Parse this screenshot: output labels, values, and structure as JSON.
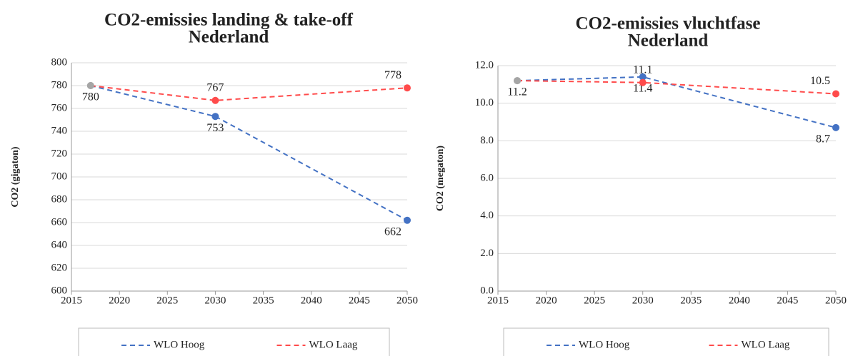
{
  "chart_data": [
    {
      "type": "line",
      "title": [
        "CO2-emissies landing & take-off",
        "Nederland"
      ],
      "y_label": "CO2 (gigaton)",
      "x": [
        2017,
        2030,
        2050
      ],
      "xlim": [
        2015,
        2050
      ],
      "xticks": [
        2015,
        2020,
        2025,
        2030,
        2035,
        2040,
        2045,
        2050
      ],
      "ylim": [
        600,
        800
      ],
      "yticks": [
        600,
        620,
        640,
        660,
        680,
        700,
        720,
        740,
        760,
        780,
        800
      ],
      "grid": true,
      "shared_point_color": "#a5a5a5",
      "series": [
        {
          "name": "WLO Hoog",
          "color": "#4472c4",
          "values": [
            780,
            753,
            662
          ]
        },
        {
          "name": "WLO Laag",
          "color": "#ff4b4b",
          "values": [
            780,
            767,
            778
          ]
        }
      ]
    },
    {
      "type": "line",
      "title": [
        "CO2-emissies vluchtfase",
        "Nederland"
      ],
      "y_label": "CO2 (megaton)",
      "x": [
        2017,
        2030,
        2050
      ],
      "xlim": [
        2015,
        2050
      ],
      "xticks": [
        2015,
        2020,
        2025,
        2030,
        2035,
        2040,
        2045,
        2050
      ],
      "ylim": [
        0,
        12
      ],
      "yticks": [
        {
          "value": 0,
          "label": "0.0"
        },
        {
          "value": 2,
          "label": "2.0"
        },
        {
          "value": 4,
          "label": "4.0"
        },
        {
          "value": 6,
          "label": "6.0"
        },
        {
          "value": 8,
          "label": "8.0"
        },
        {
          "value": 10,
          "label": "10.0"
        },
        {
          "value": 12,
          "label": "12.0"
        }
      ],
      "grid": true,
      "shared_point_color": "#a5a5a5",
      "series": [
        {
          "name": "WLO Hoog",
          "color": "#4472c4",
          "values": [
            11.2,
            11.4,
            8.7
          ]
        },
        {
          "name": "WLO Laag",
          "color": "#ff4b4b",
          "values": [
            11.2,
            11.1,
            10.5
          ]
        }
      ]
    }
  ]
}
